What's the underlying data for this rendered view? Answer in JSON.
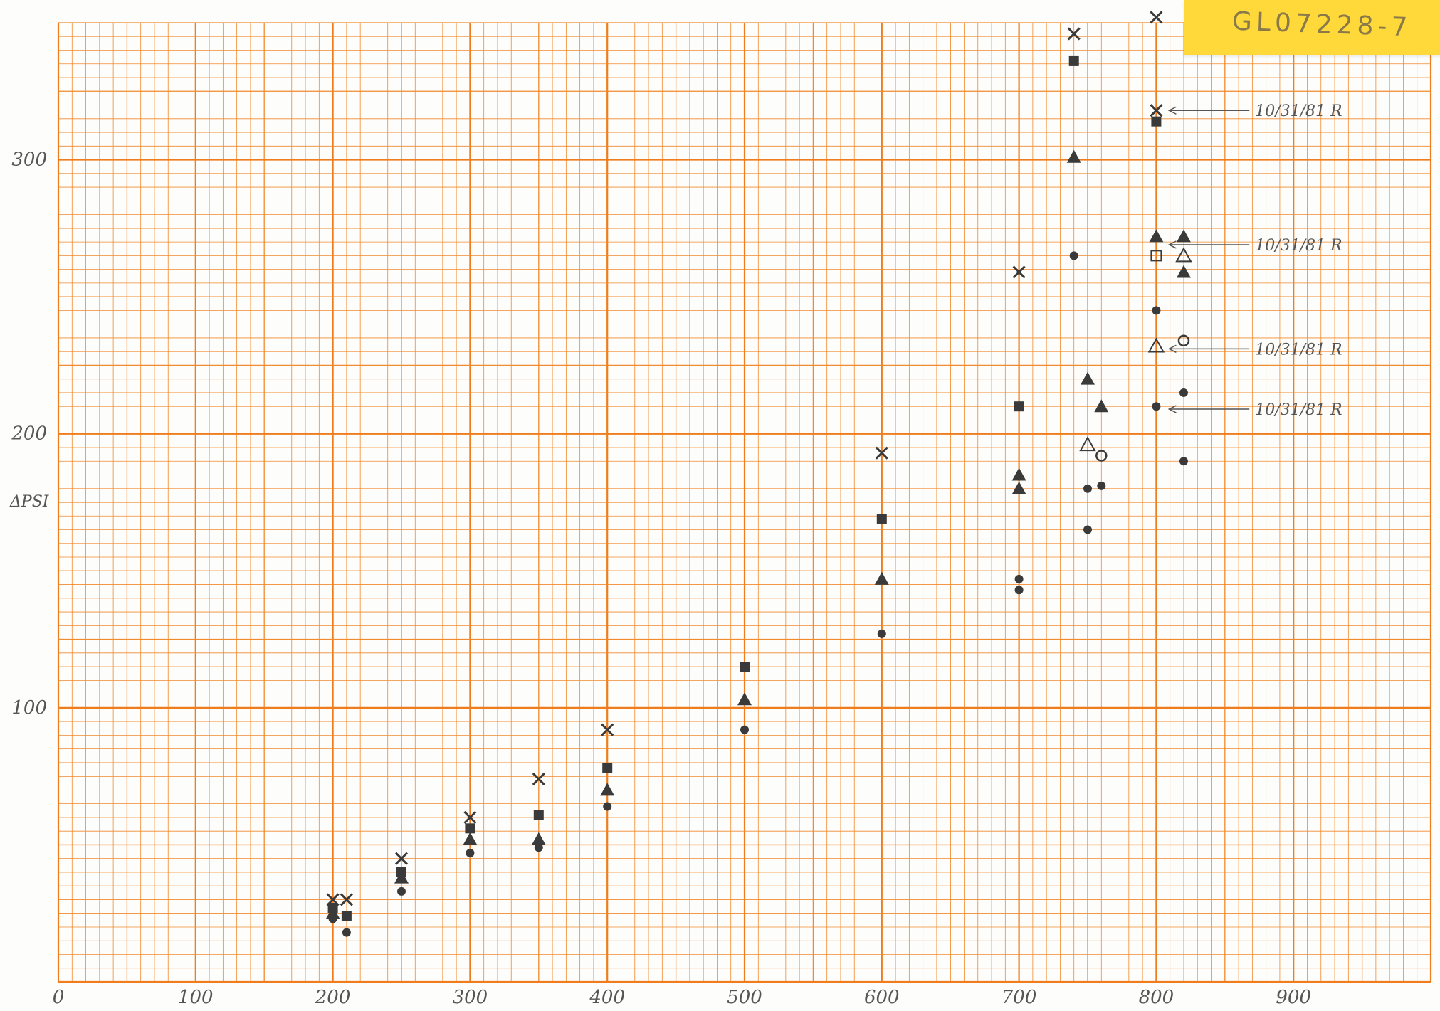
{
  "colors": {
    "grid": "#f28a2e",
    "gridMajor": "#ef7d1d",
    "ink": "#3a3a3a",
    "pencil": "#555555",
    "note": "#ffd83a"
  },
  "sheet_id": "GL07228-7",
  "chart_data": {
    "type": "scatter",
    "ylabel": "ΔPSI",
    "xlim": [
      0,
      1000
    ],
    "ylim": [
      0,
      350
    ],
    "x_ticks": [
      "0",
      "100",
      "200",
      "300",
      "400",
      "500",
      "600",
      "700",
      "800",
      "900"
    ],
    "y_ticks": [
      "100",
      "200",
      "300"
    ],
    "grid": true,
    "series": [
      {
        "marker": "x",
        "points": [
          [
            200,
            30
          ],
          [
            210,
            30
          ],
          [
            250,
            45
          ],
          [
            300,
            60
          ],
          [
            350,
            74
          ],
          [
            400,
            92
          ],
          [
            600,
            193
          ],
          [
            700,
            259
          ],
          [
            740,
            346
          ],
          [
            800,
            352
          ],
          [
            800,
            318
          ]
        ]
      },
      {
        "marker": "square",
        "points": [
          [
            200,
            27
          ],
          [
            210,
            24
          ],
          [
            250,
            40
          ],
          [
            300,
            56
          ],
          [
            350,
            61
          ],
          [
            400,
            78
          ],
          [
            500,
            115
          ],
          [
            600,
            169
          ],
          [
            700,
            210
          ],
          [
            740,
            336
          ],
          [
            800,
            314
          ]
        ]
      },
      {
        "marker": "triangle",
        "points": [
          [
            200,
            25
          ],
          [
            250,
            38
          ],
          [
            300,
            52
          ],
          [
            350,
            52
          ],
          [
            400,
            70
          ],
          [
            500,
            103
          ],
          [
            600,
            147
          ],
          [
            700,
            185
          ],
          [
            700,
            180
          ],
          [
            740,
            301
          ],
          [
            750,
            220
          ],
          [
            760,
            210
          ],
          [
            800,
            272
          ],
          [
            820,
            272
          ],
          [
            820,
            259
          ]
        ]
      },
      {
        "marker": "circle",
        "points": [
          [
            200,
            23
          ],
          [
            210,
            18
          ],
          [
            250,
            33
          ],
          [
            300,
            47
          ],
          [
            350,
            49
          ],
          [
            400,
            64
          ],
          [
            500,
            92
          ],
          [
            600,
            127
          ],
          [
            700,
            147
          ],
          [
            700,
            143
          ],
          [
            740,
            265
          ],
          [
            750,
            165
          ],
          [
            750,
            180
          ],
          [
            760,
            181
          ],
          [
            800,
            245
          ],
          [
            800,
            210
          ],
          [
            820,
            190
          ],
          [
            820,
            215
          ]
        ]
      },
      {
        "marker": "open-triangle",
        "points": [
          [
            750,
            196
          ],
          [
            800,
            232
          ],
          [
            820,
            265
          ]
        ]
      },
      {
        "marker": "open-square",
        "points": [
          [
            800,
            265
          ]
        ]
      },
      {
        "marker": "open-circle",
        "points": [
          [
            760,
            192
          ],
          [
            820,
            234
          ]
        ]
      }
    ],
    "annotations": [
      {
        "text": "10/31/81 R",
        "x": 800,
        "y": 318
      },
      {
        "text": "10/31/81 R",
        "x": 800,
        "y": 269
      },
      {
        "text": "10/31/81 R",
        "x": 800,
        "y": 231
      },
      {
        "text": "10/31/81 R",
        "x": 800,
        "y": 209
      }
    ]
  }
}
